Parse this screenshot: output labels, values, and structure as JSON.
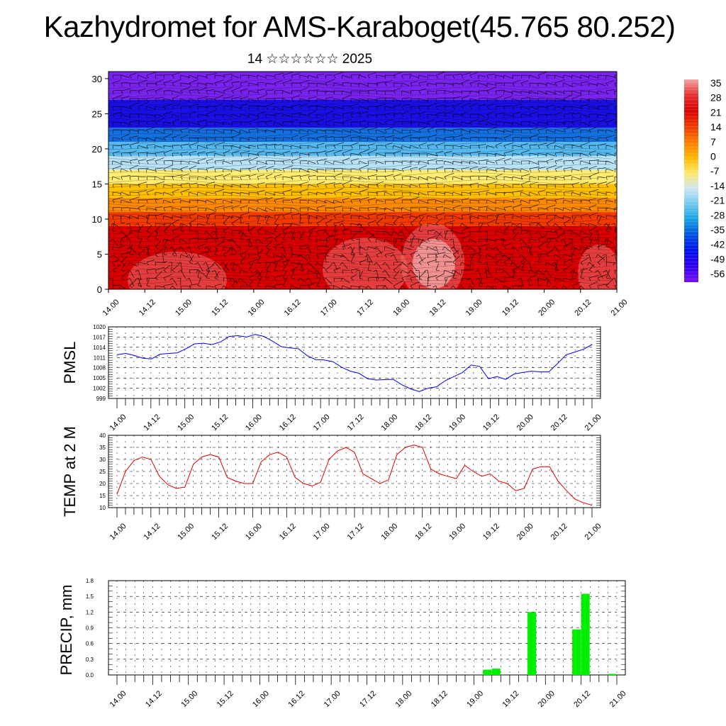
{
  "chart_data": [
    {
      "type": "heatmap",
      "title": "Kazhydromet for AMS-Karaboget(45.765 80.252)",
      "subtitle": "14 ☆☆☆☆☆☆ 2025",
      "ylim": [
        0,
        31
      ],
      "yticks": [
        "0",
        "5",
        "10",
        "15",
        "20",
        "25",
        "30"
      ],
      "xticks": [
        "14.00",
        "14.12",
        "15.00",
        "15.12",
        "16.00",
        "16.12",
        "17.00",
        "17.12",
        "18.00",
        "18.12",
        "19.00",
        "19.12",
        "20.00",
        "20.12",
        "21.00"
      ],
      "colorbar_labels": [
        "35",
        "28",
        "21",
        "14",
        "7",
        "0",
        "-7",
        "-14",
        "-21",
        "-28",
        "-35",
        "-42",
        "-49",
        "-56"
      ],
      "colorbar_colors": [
        "#f4a6a6",
        "#e53030",
        "#d80000",
        "#ee3a00",
        "#ff7a00",
        "#ffb600",
        "#ffe86a",
        "#cfe6f5",
        "#70c8f0",
        "#16a0e6",
        "#0050e0",
        "#0010f0",
        "#3000f5",
        "#7a10f0"
      ],
      "level_colors": [
        "#d80000",
        "#f23a00",
        "#ff8a00",
        "#ffc000",
        "#ffec70",
        "#b8e2f6",
        "#55b8ee",
        "#1270e0",
        "#1a10e6",
        "#7a22ee"
      ]
    },
    {
      "type": "line",
      "ylabel": "PMSL",
      "ylim": [
        999,
        1020
      ],
      "yticks": [
        "999",
        "1002",
        "1005",
        "1008",
        "1011",
        "1014",
        "1017",
        "1020"
      ],
      "xticks": [
        "14.00",
        "14.12",
        "15.00",
        "15.12",
        "16.00",
        "16.12",
        "17.00",
        "17.12",
        "18.00",
        "18.12",
        "19.00",
        "19.12",
        "20.00",
        "20.12",
        "21.00"
      ],
      "color": "#0000ff",
      "values": [
        1011.8,
        1012.2,
        1011.6,
        1010.8,
        1010.6,
        1012.0,
        1012.2,
        1012.4,
        1013.6,
        1015.0,
        1015.2,
        1014.8,
        1015.6,
        1017.2,
        1017.4,
        1017.0,
        1017.8,
        1017.2,
        1015.8,
        1014.2,
        1013.8,
        1013.6,
        1011.6,
        1010.4,
        1010.3,
        1009.8,
        1008.2,
        1007.0,
        1006.4,
        1004.8,
        1004.4,
        1004.5,
        1004.6,
        1003.0,
        1001.8,
        1001.0,
        1002.0,
        1002.4,
        1004.2,
        1005.4,
        1006.6,
        1008.8,
        1008.4,
        1004.8,
        1005.4,
        1004.6,
        1006.2,
        1006.6,
        1007.0,
        1006.8,
        1006.8,
        1009.2,
        1011.8,
        1012.6,
        1013.4,
        1014.8
      ]
    },
    {
      "type": "line",
      "ylabel": "TEMP at 2 M",
      "ylim": [
        10,
        40
      ],
      "yticks": [
        "10",
        "15",
        "20",
        "25",
        "30",
        "35",
        "40"
      ],
      "xticks": [
        "14.00",
        "14.12",
        "15.00",
        "15.12",
        "16.00",
        "16.12",
        "17.00",
        "17.12",
        "18.00",
        "18.12",
        "19.00",
        "19.12",
        "20.00",
        "20.12",
        "21.00"
      ],
      "color": "#e00000",
      "values": [
        15.5,
        25.0,
        29.5,
        31.0,
        30.0,
        23.0,
        19.5,
        18.0,
        18.5,
        28.0,
        31.0,
        32.0,
        31.0,
        22.5,
        21.0,
        20.0,
        20.0,
        29.0,
        32.0,
        33.0,
        31.0,
        22.5,
        20.0,
        19.0,
        20.5,
        30.0,
        33.5,
        35.0,
        33.0,
        24.0,
        22.0,
        20.0,
        21.5,
        32.0,
        35.0,
        36.0,
        35.0,
        26.0,
        24.0,
        23.0,
        22.0,
        27.5,
        25.0,
        23.0,
        24.0,
        21.0,
        20.0,
        17.0,
        18.0,
        26.0,
        27.0,
        27.0,
        21.0,
        17.0,
        13.5,
        12.0,
        11.0
      ]
    },
    {
      "type": "bar",
      "ylabel": "PRECIP, mm",
      "ylim": [
        0,
        1.8
      ],
      "yticks": [
        "0.0",
        "0.3",
        "0.6",
        "0.9",
        "1.2",
        "1.5",
        "1.8"
      ],
      "xticks": [
        "14.00",
        "14.12",
        "15.00",
        "15.12",
        "16.00",
        "16.12",
        "17.00",
        "17.12",
        "18.00",
        "18.12",
        "19.00",
        "19.12",
        "20.00",
        "20.12",
        "21.00"
      ],
      "color": "#00ee00",
      "bars": [
        {
          "x": 41.5,
          "value": 0.1
        },
        {
          "x": 42.5,
          "value": 0.12
        },
        {
          "x": 46.5,
          "value": 1.2
        },
        {
          "x": 51.5,
          "value": 0.87
        },
        {
          "x": 52.5,
          "value": 1.55
        },
        {
          "x": 55.5,
          "value": 0.02
        }
      ]
    }
  ]
}
